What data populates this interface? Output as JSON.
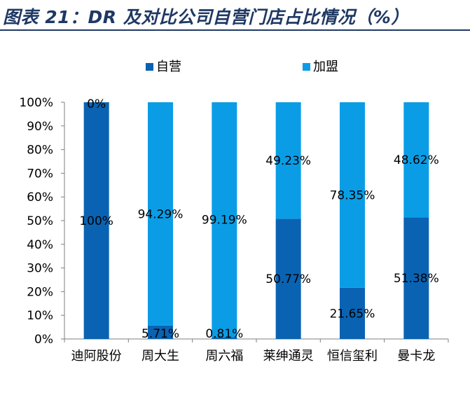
{
  "title": "图表 21：DR 及对比公司自营门店占比情况（%）",
  "colors": {
    "title": "#1f3864",
    "self_operated": "#0a63b2",
    "franchise": "#0a9de6",
    "axis": "#7f7f7f"
  },
  "chart_data": {
    "type": "bar",
    "stacked": true,
    "title": "",
    "xlabel": "",
    "ylabel": "",
    "ylim": [
      0,
      100
    ],
    "y_ticks": [
      "0%",
      "10%",
      "20%",
      "30%",
      "40%",
      "50%",
      "60%",
      "70%",
      "80%",
      "90%",
      "100%"
    ],
    "categories": [
      "迪阿股份",
      "周大生",
      "周六福",
      "莱绅通灵",
      "恒信玺利",
      "曼卡龙"
    ],
    "legend_position": "top",
    "grid": false,
    "series": [
      {
        "name": "自营",
        "color": "#0a63b2",
        "values": [
          100,
          5.71,
          0.81,
          50.77,
          21.65,
          51.38
        ],
        "labels": [
          "100%",
          "5.71%",
          "0.81%",
          "50.77%",
          "21.65%",
          "51.38%"
        ]
      },
      {
        "name": "加盟",
        "color": "#0a9de6",
        "values": [
          0,
          94.29,
          99.19,
          49.23,
          78.35,
          48.62
        ],
        "labels": [
          "0%",
          "94.29%",
          "99.19%",
          "49.23%",
          "78.35%",
          "48.62%"
        ]
      }
    ]
  }
}
